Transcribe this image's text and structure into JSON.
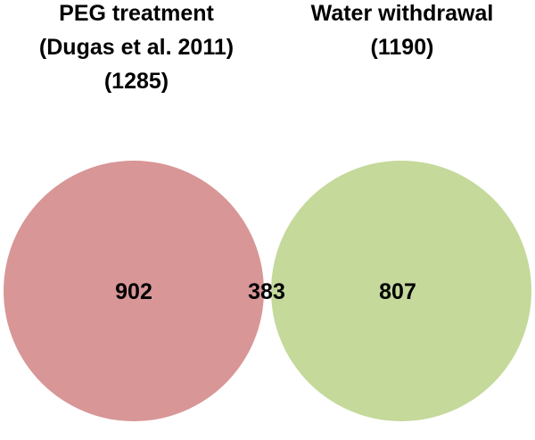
{
  "diagram": {
    "type": "venn",
    "sets": [
      {
        "id": "peg",
        "title_lines": [
          "PEG treatment",
          "(Dugas et al. 2011)",
          "(1285)"
        ],
        "color": "#d89696"
      },
      {
        "id": "water",
        "title_lines": [
          "Water withdrawal",
          "(1190)"
        ],
        "color": "#c5d99a"
      }
    ],
    "regions": {
      "only_left": "902",
      "overlap": "383",
      "only_right": "807"
    },
    "overlap_color": "#b6ad7d"
  }
}
